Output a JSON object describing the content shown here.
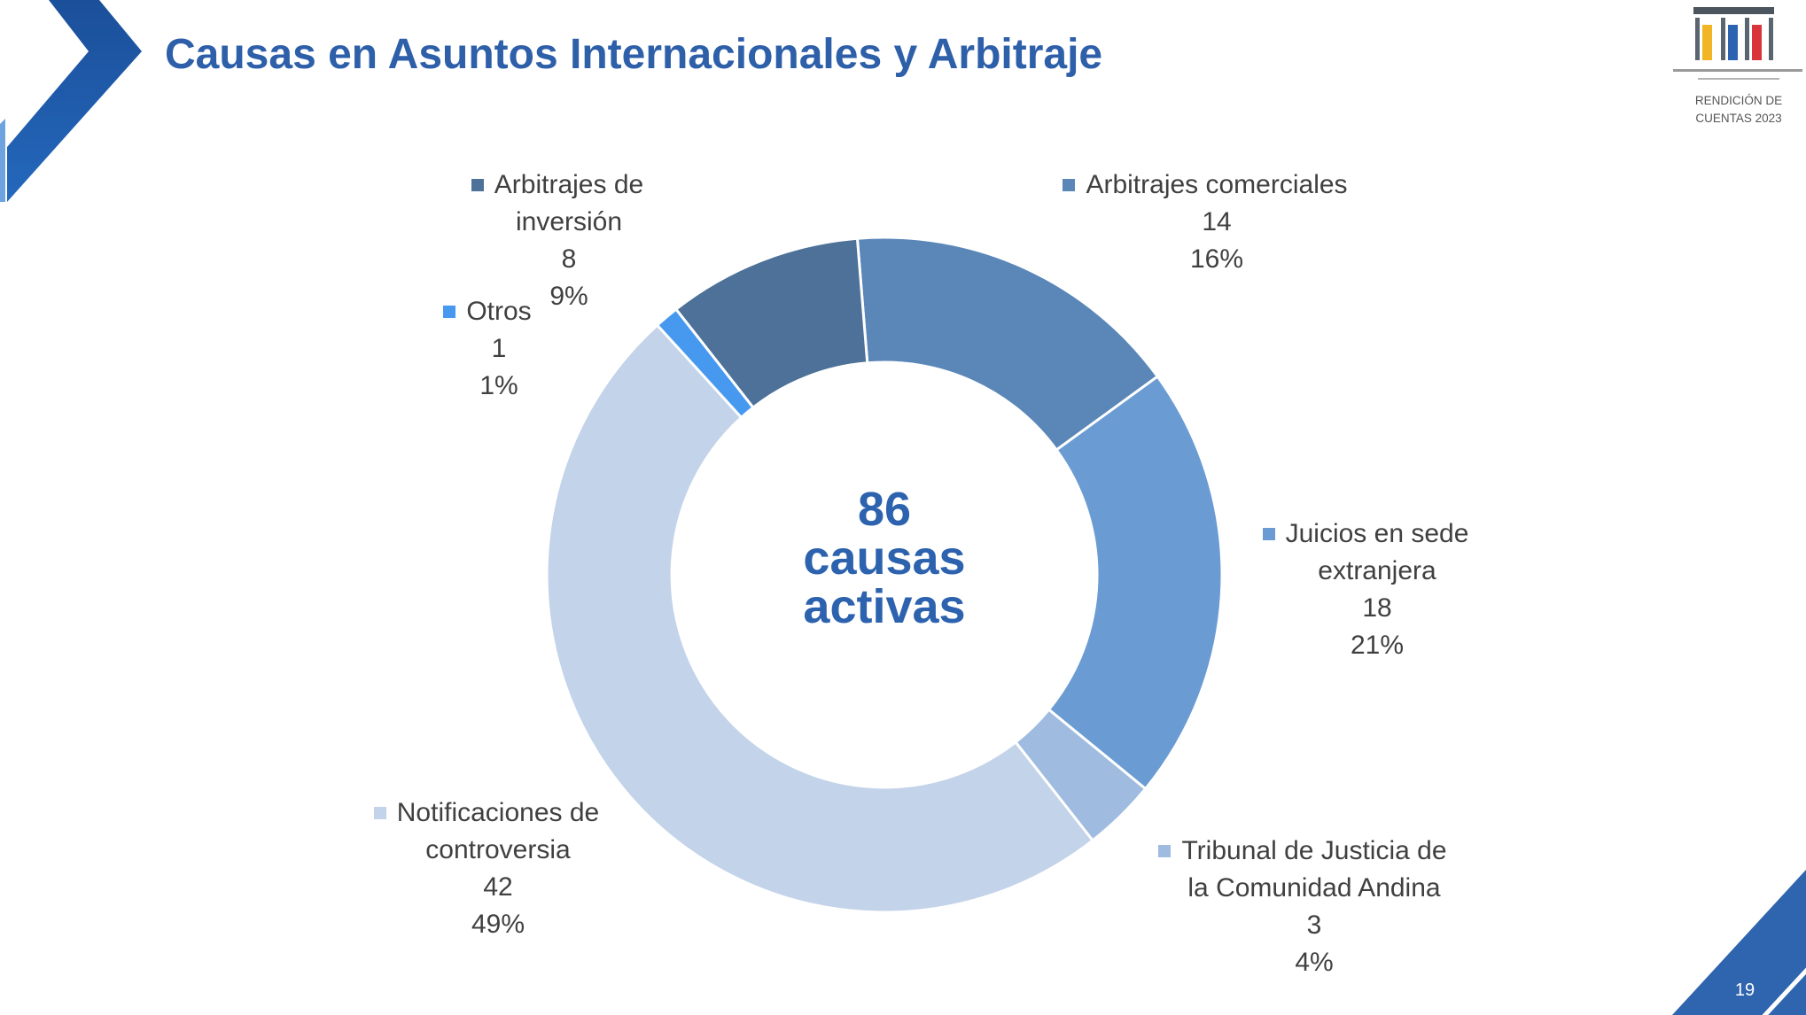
{
  "slide": {
    "title": "Causas en Asuntos Internacionales y Arbitraje",
    "page_number": "19"
  },
  "logo": {
    "caption_line1": "RENDICIÓN DE",
    "caption_line2": "CUENTAS 2023",
    "bar_colors": [
      "#F2B526",
      "#2B63B0",
      "#D9333B"
    ]
  },
  "theme": {
    "title_color": "#2E5FA9",
    "accent_color": "#2F64AE",
    "label_color": "#404040"
  },
  "center_label": {
    "total": "86",
    "line2": "causas",
    "line3": "activas"
  },
  "chart_data": {
    "type": "pie",
    "donut": true,
    "categories": [
      "Arbitrajes comerciales",
      "Juicios en sede extranjera",
      "Tribunal de Justicia de la Comunidad Andina",
      "Notificaciones de controversia",
      "Otros",
      "Arbitrajes de inversión"
    ],
    "values": [
      14,
      18,
      3,
      42,
      1,
      8
    ],
    "percent_labels": [
      "16%",
      "21%",
      "4%",
      "49%",
      "1%",
      "9%"
    ],
    "colors": [
      "#5A86B8",
      "#6A9BD2",
      "#9FBBDF",
      "#C3D3E9",
      "#4799F0",
      "#4D7198"
    ]
  }
}
